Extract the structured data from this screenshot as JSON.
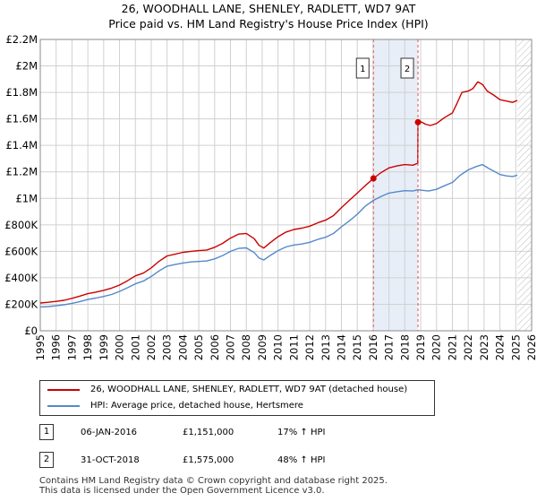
{
  "chart_data": {
    "type": "line",
    "title": "26, WOODHALL LANE, SHENLEY, RADLETT, WD7 9AT",
    "subtitle": "Price paid vs. HM Land Registry's House Price Index (HPI)",
    "xlabel": "",
    "ylabel": "",
    "xlim": [
      1995,
      2026
    ],
    "ylim": [
      0,
      2200000
    ],
    "x_ticks": [
      "1995",
      "1996",
      "1997",
      "1998",
      "1999",
      "2000",
      "2001",
      "2002",
      "2003",
      "2004",
      "2005",
      "2006",
      "2007",
      "2008",
      "2009",
      "2010",
      "2011",
      "2012",
      "2013",
      "2014",
      "2015",
      "2016",
      "2017",
      "2018",
      "2019",
      "2020",
      "2021",
      "2022",
      "2023",
      "2024",
      "2025",
      "2026"
    ],
    "y_ticks": [
      {
        "value": 0,
        "label": "£0"
      },
      {
        "value": 200000,
        "label": "£200K"
      },
      {
        "value": 400000,
        "label": "£400K"
      },
      {
        "value": 600000,
        "label": "£600K"
      },
      {
        "value": 800000,
        "label": "£800K"
      },
      {
        "value": 1000000,
        "label": "£1M"
      },
      {
        "value": 1200000,
        "label": "£1.2M"
      },
      {
        "value": 1400000,
        "label": "£1.4M"
      },
      {
        "value": 1600000,
        "label": "£1.6M"
      },
      {
        "value": 1800000,
        "label": "£1.8M"
      },
      {
        "value": 2000000,
        "label": "£2M"
      },
      {
        "value": 2200000,
        "label": "£2.2M"
      }
    ],
    "grid": true,
    "shaded_region": {
      "start": 2016.02,
      "end": 2018.83,
      "color": "#e8eef8"
    },
    "future_hatch_start": 2025.1,
    "series": [
      {
        "name": "26, WOODHALL LANE, SHENLEY, RADLETT, WD7 9AT (detached house)",
        "color": "#cc0000",
        "points": [
          [
            1995.0,
            210000
          ],
          [
            1995.5,
            215000
          ],
          [
            1996.0,
            222000
          ],
          [
            1996.5,
            230000
          ],
          [
            1997.0,
            245000
          ],
          [
            1997.5,
            262000
          ],
          [
            1998.0,
            280000
          ],
          [
            1998.5,
            292000
          ],
          [
            1999.0,
            305000
          ],
          [
            1999.5,
            322000
          ],
          [
            2000.0,
            345000
          ],
          [
            2000.5,
            378000
          ],
          [
            2001.0,
            415000
          ],
          [
            2001.5,
            435000
          ],
          [
            2002.0,
            475000
          ],
          [
            2002.5,
            525000
          ],
          [
            2003.0,
            565000
          ],
          [
            2003.5,
            578000
          ],
          [
            2004.0,
            592000
          ],
          [
            2004.5,
            600000
          ],
          [
            2005.0,
            605000
          ],
          [
            2005.5,
            610000
          ],
          [
            2006.0,
            630000
          ],
          [
            2006.5,
            660000
          ],
          [
            2007.0,
            700000
          ],
          [
            2007.5,
            730000
          ],
          [
            2008.0,
            735000
          ],
          [
            2008.5,
            695000
          ],
          [
            2008.8,
            645000
          ],
          [
            2009.1,
            625000
          ],
          [
            2009.5,
            665000
          ],
          [
            2010.0,
            710000
          ],
          [
            2010.5,
            745000
          ],
          [
            2011.0,
            765000
          ],
          [
            2011.5,
            775000
          ],
          [
            2012.0,
            790000
          ],
          [
            2012.5,
            815000
          ],
          [
            2013.0,
            835000
          ],
          [
            2013.5,
            870000
          ],
          [
            2014.0,
            930000
          ],
          [
            2014.5,
            985000
          ],
          [
            2015.0,
            1040000
          ],
          [
            2015.5,
            1095000
          ],
          [
            2016.02,
            1151000
          ],
          [
            2016.5,
            1195000
          ],
          [
            2017.0,
            1230000
          ],
          [
            2017.5,
            1245000
          ],
          [
            2018.0,
            1255000
          ],
          [
            2018.5,
            1250000
          ],
          [
            2018.82,
            1265000
          ],
          [
            2018.83,
            1575000
          ],
          [
            2019.0,
            1580000
          ],
          [
            2019.3,
            1560000
          ],
          [
            2019.6,
            1550000
          ],
          [
            2020.0,
            1565000
          ],
          [
            2020.5,
            1610000
          ],
          [
            2021.0,
            1645000
          ],
          [
            2021.3,
            1720000
          ],
          [
            2021.6,
            1800000
          ],
          [
            2022.0,
            1810000
          ],
          [
            2022.3,
            1830000
          ],
          [
            2022.6,
            1880000
          ],
          [
            2022.9,
            1860000
          ],
          [
            2023.2,
            1810000
          ],
          [
            2023.6,
            1780000
          ],
          [
            2024.0,
            1745000
          ],
          [
            2024.4,
            1735000
          ],
          [
            2024.8,
            1725000
          ],
          [
            2025.1,
            1740000
          ]
        ]
      },
      {
        "name": "HPI: Average price, detached house, Hertsmere",
        "color": "#5588cc",
        "points": [
          [
            1995.0,
            180000
          ],
          [
            1995.5,
            183000
          ],
          [
            1996.0,
            189000
          ],
          [
            1996.5,
            196000
          ],
          [
            1997.0,
            207000
          ],
          [
            1997.5,
            221000
          ],
          [
            1998.0,
            236000
          ],
          [
            1998.5,
            247000
          ],
          [
            1999.0,
            259000
          ],
          [
            1999.5,
            274000
          ],
          [
            2000.0,
            297000
          ],
          [
            2000.5,
            325000
          ],
          [
            2001.0,
            355000
          ],
          [
            2001.5,
            375000
          ],
          [
            2002.0,
            410000
          ],
          [
            2002.5,
            452000
          ],
          [
            2003.0,
            488000
          ],
          [
            2003.5,
            500000
          ],
          [
            2004.0,
            512000
          ],
          [
            2004.5,
            520000
          ],
          [
            2005.0,
            523000
          ],
          [
            2005.5,
            527000
          ],
          [
            2006.0,
            543000
          ],
          [
            2006.5,
            568000
          ],
          [
            2007.0,
            600000
          ],
          [
            2007.5,
            622000
          ],
          [
            2008.0,
            626000
          ],
          [
            2008.5,
            590000
          ],
          [
            2008.8,
            550000
          ],
          [
            2009.1,
            535000
          ],
          [
            2009.5,
            568000
          ],
          [
            2010.0,
            605000
          ],
          [
            2010.5,
            633000
          ],
          [
            2011.0,
            648000
          ],
          [
            2011.5,
            655000
          ],
          [
            2012.0,
            668000
          ],
          [
            2012.5,
            690000
          ],
          [
            2013.0,
            706000
          ],
          [
            2013.5,
            735000
          ],
          [
            2014.0,
            785000
          ],
          [
            2014.5,
            830000
          ],
          [
            2015.0,
            880000
          ],
          [
            2015.5,
            940000
          ],
          [
            2016.02,
            985000
          ],
          [
            2016.5,
            1015000
          ],
          [
            2017.0,
            1040000
          ],
          [
            2017.5,
            1050000
          ],
          [
            2018.0,
            1058000
          ],
          [
            2018.5,
            1055000
          ],
          [
            2018.83,
            1065000
          ],
          [
            2019.0,
            1062000
          ],
          [
            2019.5,
            1055000
          ],
          [
            2020.0,
            1068000
          ],
          [
            2020.5,
            1095000
          ],
          [
            2021.0,
            1120000
          ],
          [
            2021.5,
            1175000
          ],
          [
            2022.0,
            1215000
          ],
          [
            2022.5,
            1240000
          ],
          [
            2022.9,
            1255000
          ],
          [
            2023.3,
            1225000
          ],
          [
            2023.7,
            1200000
          ],
          [
            2024.0,
            1180000
          ],
          [
            2024.4,
            1170000
          ],
          [
            2024.8,
            1165000
          ],
          [
            2025.1,
            1175000
          ]
        ]
      }
    ],
    "sale_markers": [
      {
        "label": "1",
        "x": 2016.02,
        "value": 1151000
      },
      {
        "label": "2",
        "x": 2018.83,
        "value": 1575000
      }
    ]
  },
  "legend": {
    "items": [
      {
        "label": "26, WOODHALL LANE, SHENLEY, RADLETT, WD7 9AT (detached house)",
        "color": "#cc0000"
      },
      {
        "label": "HPI: Average price, detached house, Hertsmere",
        "color": "#5588cc"
      }
    ]
  },
  "sales": [
    {
      "label": "1",
      "date": "06-JAN-2016",
      "price": "£1,151,000",
      "hpi": "17% ↑ HPI"
    },
    {
      "label": "2",
      "date": "31-OCT-2018",
      "price": "£1,575,000",
      "hpi": "48% ↑ HPI"
    }
  ],
  "footer": {
    "line1": "Contains HM Land Registry data © Crown copyright and database right 2025.",
    "line2": "This data is licensed under the Open Government Licence v3.0."
  }
}
